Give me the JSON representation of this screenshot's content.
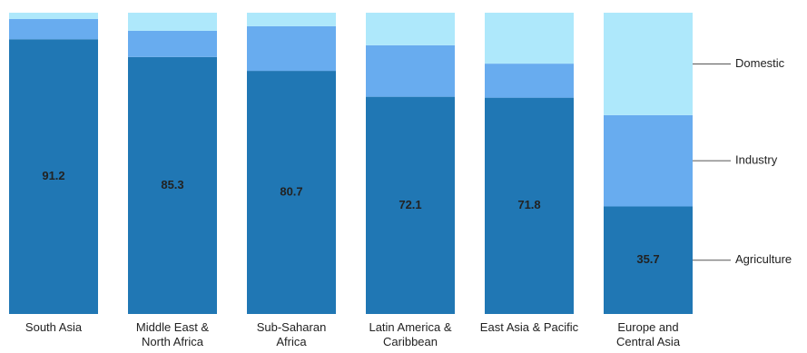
{
  "chart_data": {
    "type": "stacked-bar",
    "categories": [
      "South Asia",
      "Middle East & North Africa",
      "Sub-Saharan Africa",
      "Latin America & Caribbean",
      "East Asia & Pacific",
      "Europe and Central Asia"
    ],
    "series": [
      {
        "name": "Agriculture",
        "color": "#2077b4",
        "values": [
          91.2,
          85.3,
          80.7,
          72.1,
          71.8,
          35.7
        ],
        "show_labels": true
      },
      {
        "name": "Industry",
        "color": "#68acef",
        "values": [
          6.7,
          8.7,
          14.8,
          17.1,
          11.3,
          30.3
        ],
        "show_labels": false
      },
      {
        "name": "Domestic",
        "color": "#aee8fb",
        "values": [
          2.1,
          6.0,
          4.5,
          10.8,
          16.9,
          34.0
        ],
        "show_labels": false
      }
    ],
    "ylim": [
      0,
      100
    ]
  }
}
